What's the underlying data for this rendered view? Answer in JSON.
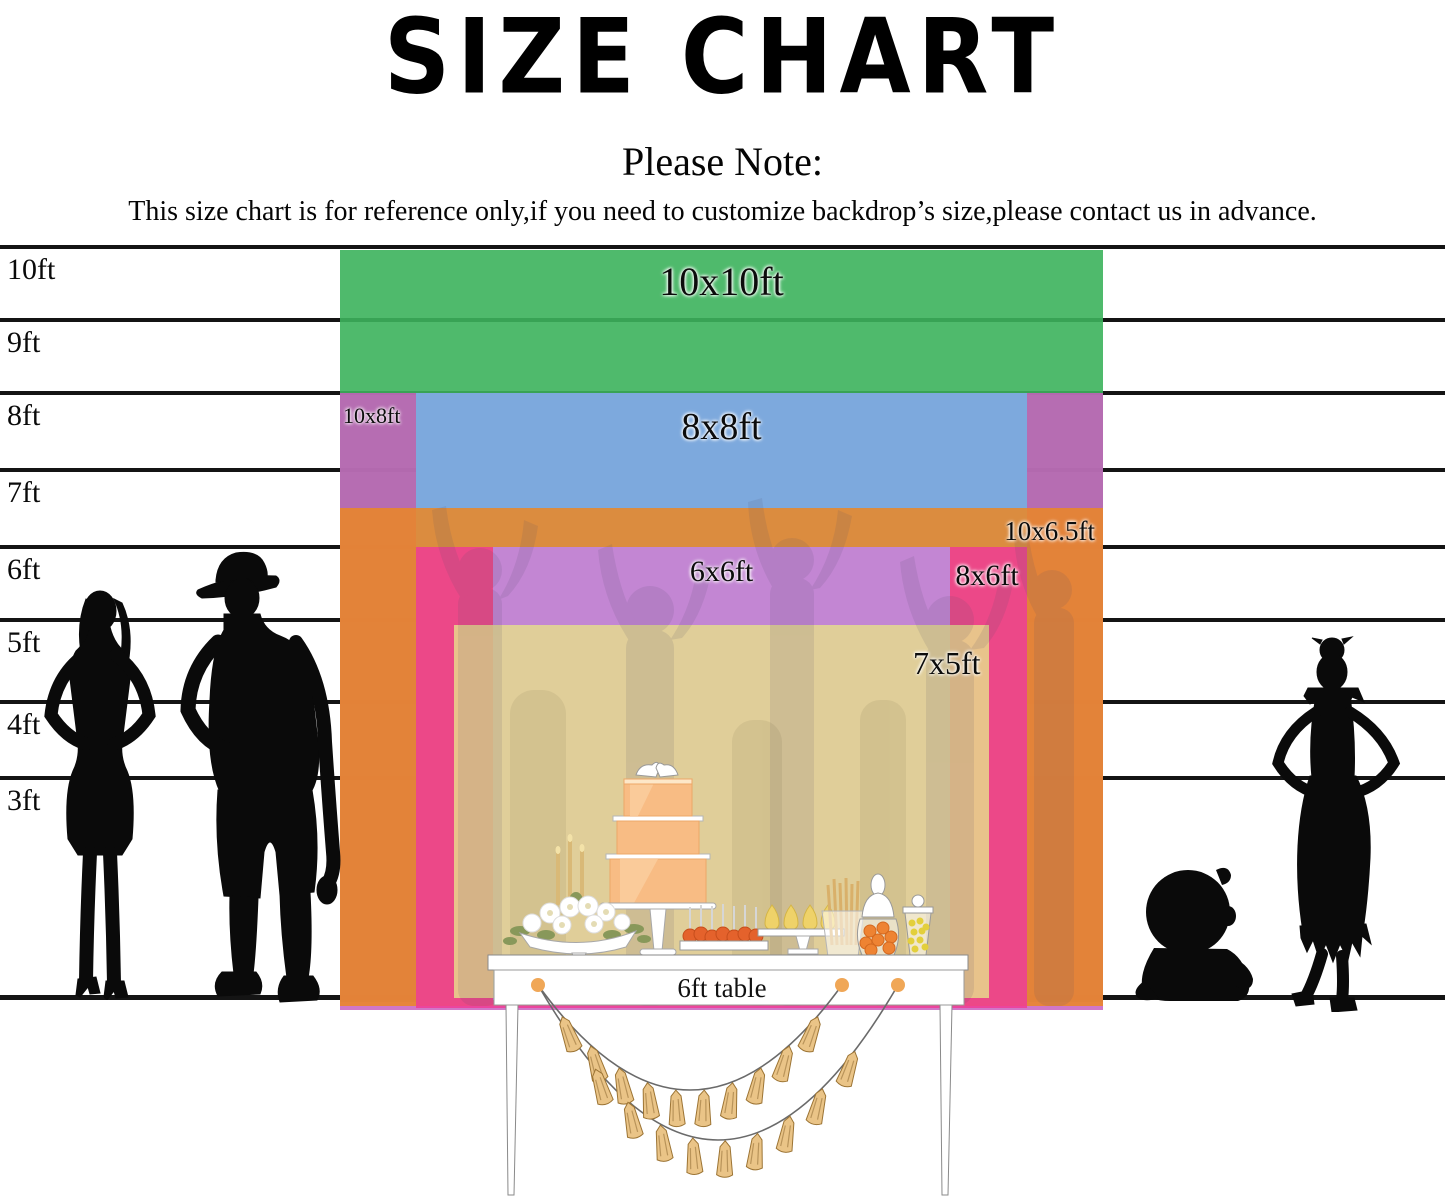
{
  "header": {
    "title": "SIZE CHART",
    "note_heading": "Please Note:",
    "note_body": "This size chart is for reference only,if you need to customize backdrop’s size,please contact us in advance."
  },
  "chart_data": {
    "type": "size-comparison",
    "units": "ft",
    "title": "SIZE CHART",
    "ruler_ticks": [
      {
        "ft": 10,
        "label": "10ft"
      },
      {
        "ft": 9,
        "label": "9ft"
      },
      {
        "ft": 8,
        "label": "8ft"
      },
      {
        "ft": 7,
        "label": "7ft"
      },
      {
        "ft": 6,
        "label": "6ft"
      },
      {
        "ft": 5,
        "label": "5ft"
      },
      {
        "ft": 4,
        "label": "4ft"
      },
      {
        "ft": 3,
        "label": "3ft"
      }
    ],
    "backdrops": [
      {
        "label": "10x10ft",
        "width_ft": 10,
        "height_ft": 10,
        "fill": "rgba(60,178,92,0.9)",
        "color_hex": "#5abc6e",
        "label_align": "center"
      },
      {
        "label": "10x8ft",
        "width_ft": 10,
        "height_ft": 8,
        "fill": "rgba(200,95,190,0.85)",
        "color_hex": "#c77ec2",
        "label_align": "left"
      },
      {
        "label": "8x8ft",
        "width_ft": 8,
        "height_ft": 8,
        "fill": "rgba(120,175,225,0.92)",
        "color_hex": "#92bee4",
        "label_align": "center"
      },
      {
        "label": "10x6.5ft",
        "width_ft": 10,
        "height_ft": 6.5,
        "fill": "rgba(235,135,35,0.85)",
        "color_hex": "#ee9944",
        "label_align": "right"
      },
      {
        "label": "8x6ft",
        "width_ft": 8,
        "height_ft": 6,
        "fill": "rgba(240,60,150,0.84)",
        "color_hex": "#ec4899",
        "label_align": "right"
      },
      {
        "label": "6x6ft",
        "width_ft": 6,
        "height_ft": 6,
        "fill": "rgba(185,150,230,0.8)",
        "color_hex": "#c386d3",
        "label_align": "center"
      },
      {
        "label": "7x5ft",
        "width_ft": 7,
        "height_ft": 5,
        "fill": "rgba(230,222,140,0.82)",
        "color_hex": "#ddd49b",
        "label_align": "right"
      }
    ],
    "table_label": "6ft table",
    "figures": [
      "woman silhouette",
      "man with hat silhouette",
      "sitting baby silhouette",
      "girl silhouette"
    ]
  }
}
